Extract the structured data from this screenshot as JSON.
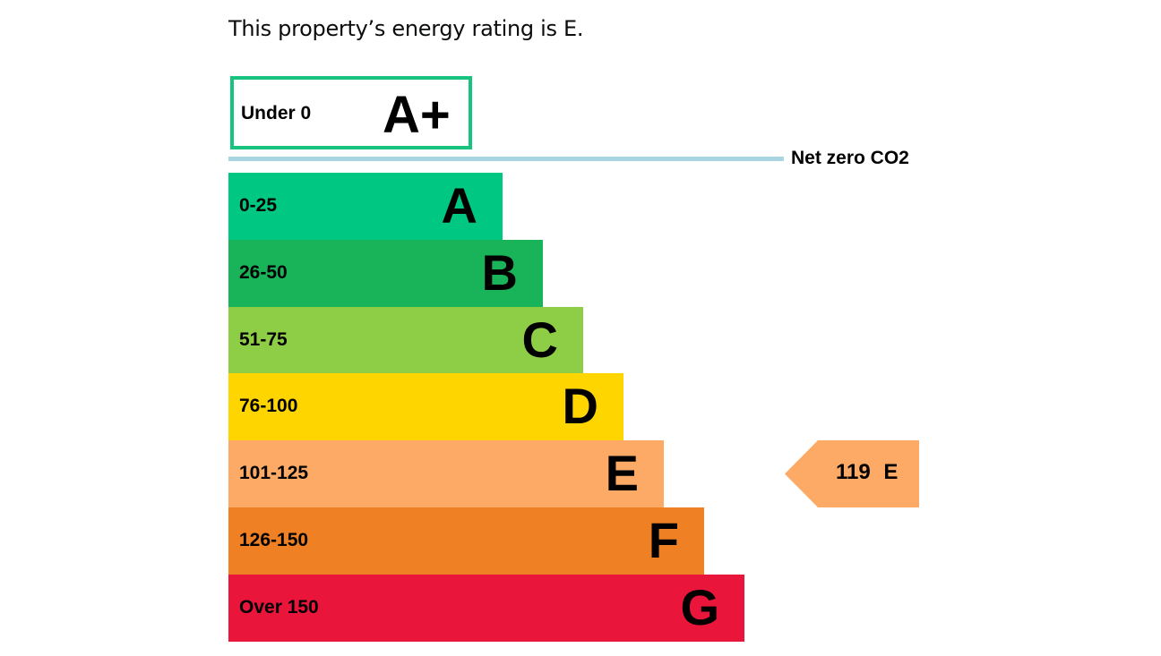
{
  "title": "This property’s energy rating is E.",
  "chart_data": {
    "type": "bar",
    "title": "This property’s energy rating is E.",
    "top_band": {
      "range": "Under 0",
      "letter": "A+",
      "color": "#17c37f"
    },
    "net_zero_label": "Net zero CO2",
    "bands": [
      {
        "range": "0-25",
        "letter": "A",
        "color": "#00c781"
      },
      {
        "range": "26-50",
        "letter": "B",
        "color": "#19b459"
      },
      {
        "range": "51-75",
        "letter": "C",
        "color": "#8dce46"
      },
      {
        "range": "76-100",
        "letter": "D",
        "color": "#ffd500"
      },
      {
        "range": "101-125",
        "letter": "E",
        "color": "#fcaa65"
      },
      {
        "range": "126-150",
        "letter": "F",
        "color": "#ef8023"
      },
      {
        "range": "Over 150",
        "letter": "G",
        "color": "#e9153b"
      }
    ],
    "current": {
      "label": "119  E",
      "value": 119,
      "rating": "E",
      "color": "#fcaa65"
    }
  }
}
